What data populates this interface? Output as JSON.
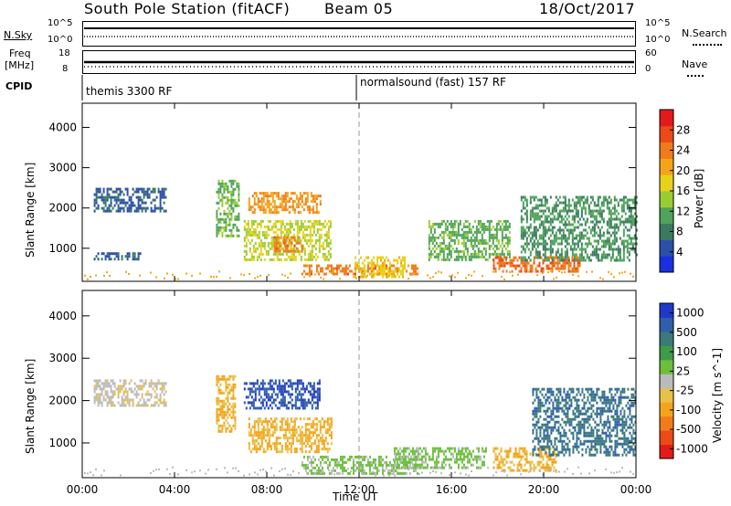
{
  "header": {
    "station": "South Pole Station",
    "mode": "(fitACF)",
    "beam": "Beam 05",
    "date": "18/Oct/2017"
  },
  "sky_panel": {
    "left_label": "N.Sky",
    "right_label": "N.Search",
    "left_ticks": [
      "10^5",
      "10^0"
    ],
    "right_ticks": [
      "10^5",
      "10^0"
    ]
  },
  "freq_panel": {
    "left_label_line1": "Freq",
    "left_label_line2": "[MHz]",
    "right_label": "Nave",
    "left_ticks": [
      "18",
      "8"
    ],
    "right_ticks": [
      "60",
      "0"
    ]
  },
  "cpid_panel": {
    "label": "CPID",
    "programs": [
      "themis 3300 RF",
      "normalsound (fast) 157 RF"
    ]
  },
  "x_axis": {
    "label": "Time UT",
    "ticks": [
      "00:00",
      "04:00",
      "08:00",
      "12:00",
      "16:00",
      "20:00",
      "00:00"
    ]
  },
  "colors": {
    "power": [
      "#1a2fe0",
      "#2c4fa8",
      "#3a7a60",
      "#4fa35a",
      "#9ccc33",
      "#e7d21a",
      "#f5a419",
      "#f07b1b",
      "#ec4a17",
      "#e31a1a"
    ],
    "velocity": [
      "#e31a1a",
      "#ec4a17",
      "#f07b1b",
      "#f5a419",
      "#e7c24a",
      "#bbbbbb",
      "#6cbf3c",
      "#3f9a4a",
      "#3a7a7a",
      "#2f5fa8",
      "#2038c8"
    ]
  },
  "chart_data": [
    {
      "type": "heatmap",
      "title": "",
      "xlabel": "Time UT",
      "ylabel": "Slant Range [km]",
      "xlim": [
        "00:00",
        "00:00"
      ],
      "ylim": [
        180,
        4600
      ],
      "y_ticks": [
        "1000",
        "2000",
        "3000",
        "4000"
      ],
      "colorbar_label": "Power [dB]",
      "colorbar_ticks": [
        "4",
        "8",
        "12",
        "16",
        "20",
        "24",
        "28"
      ],
      "colorbar_range": [
        0,
        32
      ],
      "regions": [
        {
          "t_start": 0.5,
          "t_end": 3.6,
          "r_start": 1900,
          "r_end": 2500,
          "value": 6
        },
        {
          "t_start": 0.5,
          "t_end": 2.5,
          "r_start": 700,
          "r_end": 900,
          "value": 6
        },
        {
          "t_start": 5.8,
          "t_end": 6.8,
          "r_start": 1300,
          "r_end": 2700,
          "value": 12
        },
        {
          "t_start": 7.2,
          "t_end": 10.3,
          "r_start": 1900,
          "r_end": 2400,
          "value": 22
        },
        {
          "t_start": 7.0,
          "t_end": 10.8,
          "r_start": 700,
          "r_end": 1700,
          "value": 16
        },
        {
          "t_start": 8.3,
          "t_end": 9.5,
          "r_start": 900,
          "r_end": 1300,
          "value": 24
        },
        {
          "t_start": 9.5,
          "t_end": 14.5,
          "r_start": 350,
          "r_end": 600,
          "value": 24
        },
        {
          "t_start": 11.8,
          "t_end": 14.0,
          "r_start": 300,
          "r_end": 800,
          "value": 18
        },
        {
          "t_start": 15.0,
          "t_end": 18.5,
          "r_start": 700,
          "r_end": 1700,
          "value": 12
        },
        {
          "t_start": 17.8,
          "t_end": 21.6,
          "r_start": 450,
          "r_end": 800,
          "value": 25
        },
        {
          "t_start": 19.0,
          "t_end": 24.0,
          "r_start": 700,
          "r_end": 2300,
          "value": 10
        }
      ]
    },
    {
      "type": "heatmap",
      "title": "",
      "xlabel": "Time UT",
      "ylabel": "Slant Range [km]",
      "xlim": [
        "00:00",
        "00:00"
      ],
      "ylim": [
        180,
        4600
      ],
      "y_ticks": [
        "1000",
        "2000",
        "3000",
        "4000"
      ],
      "colorbar_label": "Velocity [m s^-1]",
      "colorbar_ticks": [
        "1000",
        "500",
        "100",
        "25",
        "-25",
        "-100",
        "-500",
        "-1000"
      ],
      "colorbar_range": [
        -1000,
        1000
      ],
      "regions": [
        {
          "t_start": 0.5,
          "t_end": 3.6,
          "r_start": 1900,
          "r_end": 2500,
          "value": -50
        },
        {
          "t_start": 5.8,
          "t_end": 6.6,
          "r_start": 1300,
          "r_end": 2600,
          "value": -300
        },
        {
          "t_start": 7.0,
          "t_end": 10.3,
          "r_start": 1800,
          "r_end": 2500,
          "value": 800
        },
        {
          "t_start": 7.2,
          "t_end": 10.8,
          "r_start": 800,
          "r_end": 1600,
          "value": -300
        },
        {
          "t_start": 9.5,
          "t_end": 14.5,
          "r_start": 300,
          "r_end": 700,
          "value": 150
        },
        {
          "t_start": 13.5,
          "t_end": 17.5,
          "r_start": 400,
          "r_end": 900,
          "value": 150
        },
        {
          "t_start": 17.8,
          "t_end": 20.5,
          "r_start": 350,
          "r_end": 900,
          "value": -300
        },
        {
          "t_start": 19.5,
          "t_end": 24.0,
          "r_start": 700,
          "r_end": 2300,
          "value": 600
        }
      ]
    }
  ]
}
